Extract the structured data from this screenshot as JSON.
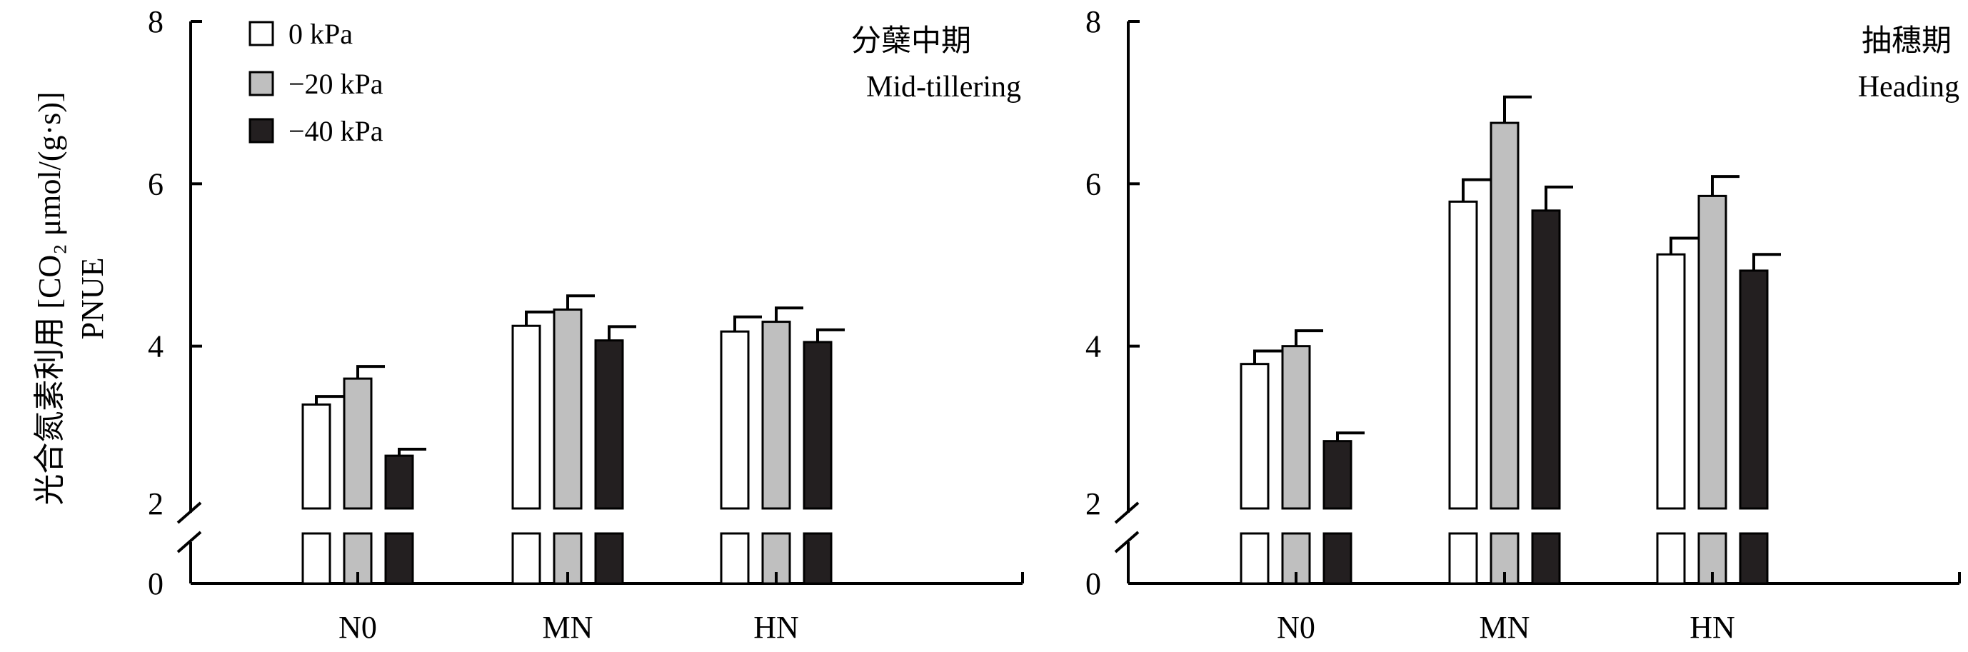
{
  "chart_data": [
    {
      "type": "bar",
      "title_zh": "分蘖中期",
      "title_en": "Mid-tillering",
      "ylabel_line1": "光合氮素利用 [CO₂ μmol/(g·s)]",
      "ylabel_line2": "PNUE",
      "categories": [
        "N0",
        "MN",
        "HN"
      ],
      "yticks": [
        "0",
        "2",
        "4",
        "6",
        "8"
      ],
      "ylim": [
        0,
        8
      ],
      "axis_break": [
        0,
        2
      ],
      "legend_position": "top-left",
      "series": [
        {
          "name": "0 kPa",
          "color": "#ffffff",
          "values": [
            3.28,
            4.25,
            4.18
          ],
          "errors": [
            0.1,
            0.17,
            0.18
          ]
        },
        {
          "name": "−20 kPa",
          "color": "#bfbfbf",
          "values": [
            3.6,
            4.45,
            4.3
          ],
          "errors": [
            0.15,
            0.17,
            0.17
          ]
        },
        {
          "name": "−40 kPa",
          "color": "#231f20",
          "values": [
            2.65,
            4.07,
            4.05
          ],
          "errors": [
            0.08,
            0.17,
            0.15
          ]
        }
      ]
    },
    {
      "type": "bar",
      "title_zh": "抽穗期",
      "title_en": "Heading",
      "categories": [
        "N0",
        "MN",
        "HN"
      ],
      "yticks": [
        "0",
        "2",
        "4",
        "6",
        "8"
      ],
      "ylim": [
        0,
        8
      ],
      "axis_break": [
        0,
        2
      ],
      "series": [
        {
          "name": "0 kPa",
          "color": "#ffffff",
          "values": [
            3.78,
            5.78,
            5.13
          ],
          "errors": [
            0.16,
            0.27,
            0.2
          ]
        },
        {
          "name": "−20 kPa",
          "color": "#bfbfbf",
          "values": [
            4.0,
            6.75,
            5.85
          ],
          "errors": [
            0.19,
            0.32,
            0.24
          ]
        },
        {
          "name": "−40 kPa",
          "color": "#231f20",
          "values": [
            2.83,
            5.67,
            4.93
          ],
          "errors": [
            0.1,
            0.29,
            0.2
          ]
        }
      ]
    }
  ]
}
